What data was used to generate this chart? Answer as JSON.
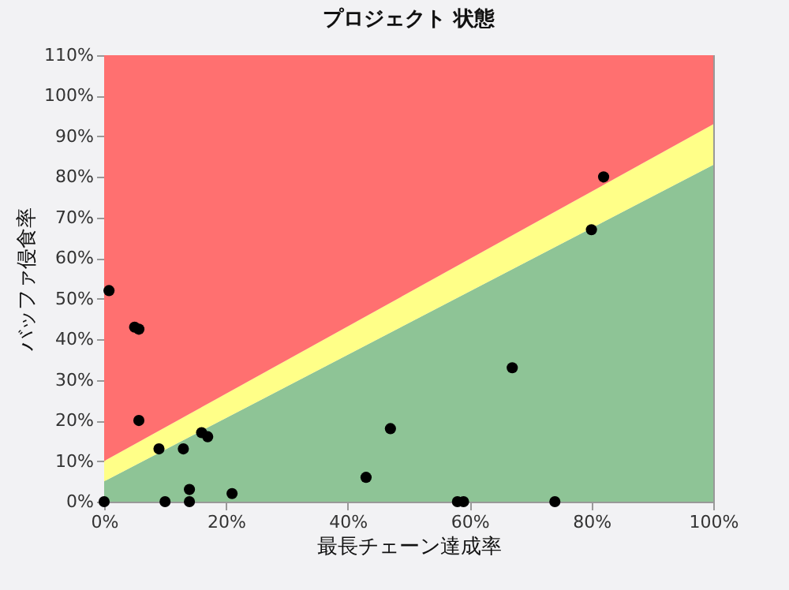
{
  "chart_data": {
    "type": "scatter",
    "title": "プロジェクト 状態",
    "xlabel": "最長チェーン達成率",
    "ylabel": "バッファ侵食率",
    "stacked": true,
    "xlim": [
      0,
      100
    ],
    "ylim": [
      0,
      110
    ],
    "xticks": [
      {
        "value": 0,
        "label": "0%"
      },
      {
        "value": 20,
        "label": "20%"
      },
      {
        "value": 40,
        "label": "40%"
      },
      {
        "value": 60,
        "label": "60%"
      },
      {
        "value": 80,
        "label": "80%"
      },
      {
        "value": 100,
        "label": "100%"
      }
    ],
    "yticks": [
      {
        "value": 0,
        "label": "0%"
      },
      {
        "value": 10,
        "label": "10%"
      },
      {
        "value": 20,
        "label": "20%"
      },
      {
        "value": 30,
        "label": "30%"
      },
      {
        "value": 40,
        "label": "40%"
      },
      {
        "value": 50,
        "label": "50%"
      },
      {
        "value": 60,
        "label": "60%"
      },
      {
        "value": 70,
        "label": "70%"
      },
      {
        "value": 80,
        "label": "80%"
      },
      {
        "value": 90,
        "label": "90%"
      },
      {
        "value": 100,
        "label": "100%"
      },
      {
        "value": 110,
        "label": "110%"
      }
    ],
    "grid": false,
    "series": [
      {
        "type": "area",
        "color": "#8ec496",
        "x": [
          0,
          100
        ],
        "values": [
          5,
          83
        ]
      },
      {
        "type": "area",
        "color": "#ffff88",
        "x": [
          0,
          100
        ],
        "values": [
          5,
          10
        ]
      },
      {
        "type": "area",
        "color": "#ff7070",
        "x": [
          0,
          100
        ],
        "values": [
          100,
          17
        ]
      },
      {
        "color": "#000000",
        "x": [
          0,
          0.8,
          5,
          5.7,
          5.7,
          9,
          13,
          16,
          17,
          10,
          14,
          14,
          21,
          43,
          47,
          67,
          58,
          59,
          74,
          80,
          82
        ],
        "values": [
          0,
          52,
          43,
          42.5,
          20,
          13,
          13,
          17,
          16,
          0,
          3,
          0,
          2,
          6,
          18,
          33,
          0,
          0,
          0,
          67,
          80
        ]
      }
    ]
  }
}
